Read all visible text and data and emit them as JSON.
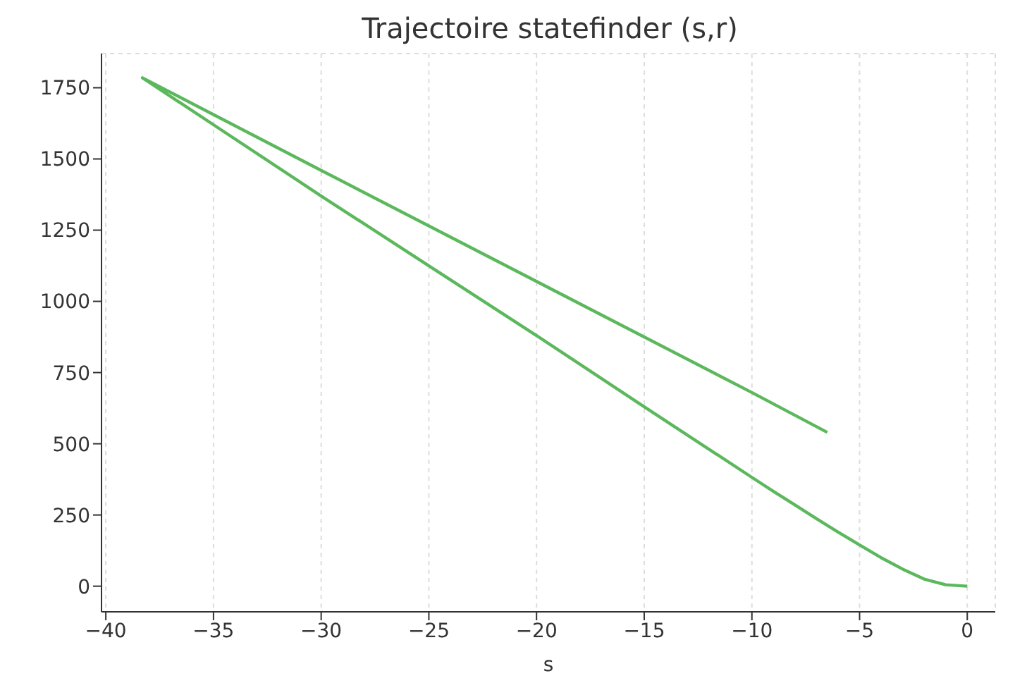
{
  "chart_data": {
    "type": "line",
    "title": "Trajectoire statefinder (s,r)",
    "xlabel": "s",
    "x": [
      0,
      -1,
      -2,
      -3,
      -4,
      -5,
      -6,
      -7,
      -8,
      -9,
      -10,
      -15,
      -20,
      -25,
      -30,
      -35,
      -38.3,
      -30,
      -20,
      -10,
      -6.5
    ],
    "series": [
      {
        "color": "#5cb85c",
        "values": [
          0,
          5,
          25,
          60,
          100,
          145,
          190,
          237,
          285,
          333,
          382,
          630,
          880,
          1125,
          1370,
          1620,
          1785,
          1460,
          1070,
          680,
          540
        ]
      }
    ],
    "xlim": [
      -40.2,
      1.3
    ],
    "xticks": [
      {
        "value": -40,
        "label": "−40"
      },
      {
        "value": -35,
        "label": "−35"
      },
      {
        "value": -30,
        "label": "−30"
      },
      {
        "value": -25,
        "label": "−25"
      },
      {
        "value": -20,
        "label": "−20"
      },
      {
        "value": -15,
        "label": "−15"
      },
      {
        "value": -10,
        "label": "−10"
      },
      {
        "value": -5,
        "label": "−5"
      },
      0
    ],
    "ylim": [
      -90,
      1870
    ],
    "yticks": [
      0,
      250,
      500,
      750,
      1000,
      1250,
      1500,
      1750
    ],
    "grid": true,
    "line_style": "solid",
    "marker": "none"
  }
}
